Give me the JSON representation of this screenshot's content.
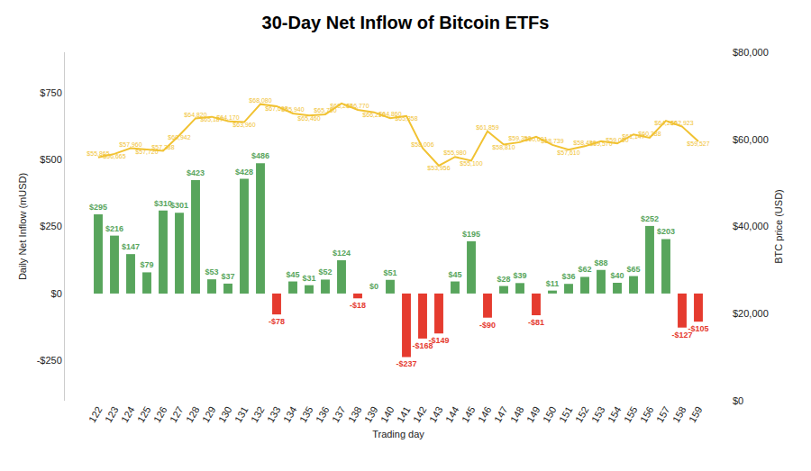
{
  "chart_data": {
    "type": "bar",
    "title": "30-Day Net Inflow of Bitcoin ETFs",
    "x_label": "Trading day",
    "y_label": "Daily Net Inflow (mUSD)",
    "y2_label": "BTC price (USD)",
    "categories": [
      "122",
      "123",
      "124",
      "125",
      "126",
      "127",
      "128",
      "129",
      "130",
      "131",
      "132",
      "133",
      "134",
      "135",
      "136",
      "137",
      "138",
      "139",
      "140",
      "141",
      "142",
      "143",
      "144",
      "145",
      "146",
      "147",
      "148",
      "149",
      "150",
      "151",
      "152",
      "153",
      "154",
      "155",
      "156",
      "157",
      "158",
      "159"
    ],
    "series": [
      {
        "type": "bar",
        "data_labels": true,
        "values": [
          295,
          216,
          147,
          79,
          310,
          301,
          423,
          53,
          37,
          428,
          486,
          -78,
          45,
          31,
          52,
          124,
          -18,
          0,
          51,
          -237,
          -168,
          -149,
          45,
          195,
          -90,
          28,
          39,
          -81,
          11,
          36,
          62,
          88,
          40,
          65,
          252,
          203,
          -127,
          -105
        ],
        "value_labels": [
          "$295",
          "$216",
          "$147",
          "$79",
          "$310",
          "$301",
          "$423",
          "$53",
          "$37",
          "$428",
          "$486",
          "-$78",
          "$45",
          "$31",
          "$52",
          "$124",
          "-$18",
          "$0",
          "$51",
          "-$237",
          "-$168",
          "-$149",
          "$45",
          "$195",
          "-$90",
          "$28",
          "$39",
          "-$81",
          "$11",
          "$36",
          "$62",
          "$88",
          "$40",
          "$65",
          "$252",
          "$203",
          "-$127",
          "-$105"
        ],
        "colors": [
          "#58a55c",
          "#58a55c",
          "#58a55c",
          "#58a55c",
          "#58a55c",
          "#58a55c",
          "#58a55c",
          "#58a55c",
          "#58a55c",
          "#58a55c",
          "#58a55c",
          "#e53b2f",
          "#58a55c",
          "#58a55c",
          "#58a55c",
          "#58a55c",
          "#e53b2f",
          "#58a55c",
          "#58a55c",
          "#e53b2f",
          "#e53b2f",
          "#e53b2f",
          "#58a55c",
          "#58a55c",
          "#e53b2f",
          "#58a55c",
          "#58a55c",
          "#e53b2f",
          "#58a55c",
          "#58a55c",
          "#58a55c",
          "#58a55c",
          "#58a55c",
          "#58a55c",
          "#58a55c",
          "#58a55c",
          "#e53b2f",
          "#e53b2f"
        ]
      },
      {
        "type": "line",
        "axis": "y2",
        "color": "#f1c232",
        "marker": "none",
        "line_style": "solid",
        "data_labels": true,
        "values": [
          55865,
          56665,
          57960,
          57720,
          57388,
          60942,
          64820,
          65187,
          64170,
          63960,
          68080,
          67608,
          65940,
          65460,
          65750,
          68243,
          66770,
          66219,
          64860,
          65358,
          58006,
          53956,
          55980,
          55100,
          61859,
          58810,
          59350,
          60601,
          58739,
          57610,
          58430,
          59570,
          59060,
          61147,
          60388,
          64266,
          62923,
          59527
        ],
        "value_labels": [
          "$55,865",
          "$56,665",
          "$57,960",
          "$57,720",
          "$57,388",
          "$60,942",
          "$64,820",
          "$65,187",
          "$64,170",
          "$63,960",
          "$68,080",
          "$67,608",
          "$65,940",
          "$65,460",
          "$65,750",
          "$68,243",
          "$66,770",
          "$66,219",
          "$64,860",
          "$65,358",
          "$58,006",
          "$53,956",
          "$55,980",
          "$55,100",
          "$61,859",
          "$58,810",
          "$59,350",
          "$60,601",
          "$58,739",
          "$57,610",
          "$58,430",
          "$59,570",
          "$59,060",
          "$61,147",
          "$60,388",
          "$64,266",
          "$62,923",
          "$59,527"
        ]
      }
    ],
    "ylim": [
      -400,
      900
    ],
    "yticks": [
      {
        "value": -250,
        "label": "-$250"
      },
      {
        "value": 0,
        "label": "$0"
      },
      {
        "value": 250,
        "label": "$250"
      },
      {
        "value": 500,
        "label": "$500"
      },
      {
        "value": 750,
        "label": "$750"
      }
    ],
    "y2lim": [
      0,
      80000
    ],
    "y2ticks": [
      {
        "value": 0,
        "label": "$0"
      },
      {
        "value": 20000,
        "label": "$20,000"
      },
      {
        "value": 40000,
        "label": "$40,000"
      },
      {
        "value": 60000,
        "label": "$60,000"
      },
      {
        "value": 80000,
        "label": "$80,000"
      }
    ],
    "grid": false
  }
}
